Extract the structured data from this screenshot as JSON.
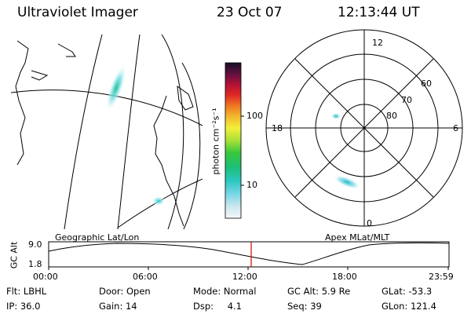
{
  "header": {
    "title": "Ultraviolet Imager",
    "date": "23 Oct 07",
    "time": "12:13:44 UT"
  },
  "colorbar": {
    "label": "photon cm⁻²s⁻¹",
    "tick_100": "100",
    "tick_10": "10"
  },
  "polar": {
    "mlt_12": "12",
    "mlt_18": "18",
    "mlt_6": "6",
    "mlt_0": "0",
    "lat_60": "60",
    "lat_70": "70",
    "lat_80": "80"
  },
  "map_labels": {
    "left": "Geographic Lat/Lon",
    "right": "Apex MLat/MLT"
  },
  "altitude_plot": {
    "ylabel": "GC Alt",
    "ymax": "9.0",
    "ymin": "1.8",
    "xticks": [
      "00:00",
      "06:00",
      "12:00",
      "18:00",
      "23:59"
    ]
  },
  "info": {
    "flt_label": "Flt:",
    "flt_value": "LBHL",
    "ip_label": "IP:",
    "ip_value": "36.0",
    "door_label": "Door:",
    "door_value": "Open",
    "gain_label": "Gain:",
    "gain_value": "14",
    "mode_label": "Mode:",
    "mode_value": "Normal",
    "dsp_label": "Dsp:",
    "dsp_value": "4.1",
    "gcalt_label": "GC Alt:",
    "gcalt_value": "5.9 Re",
    "seq_label": "Seq:",
    "seq_value": "39",
    "glat_label": "GLat:",
    "glat_value": "-53.3",
    "glon_label": "GLon:",
    "glon_value": "121.4"
  }
}
